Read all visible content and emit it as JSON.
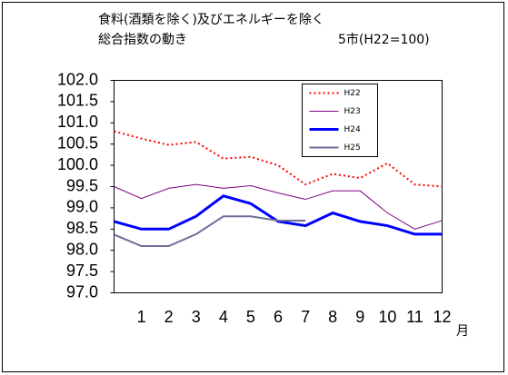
{
  "chart_data": {
    "type": "line",
    "title": [
      "食料(酒類を除く)及びエネルギーを除く",
      "総合指数の動き"
    ],
    "subtitle": "5市(H22=100)",
    "x_label": "月",
    "categories": [
      null,
      "1",
      "2",
      "3",
      "4",
      "5",
      "6",
      "7",
      "8",
      "9",
      "10",
      "11",
      "12"
    ],
    "ylim": [
      97,
      102
    ],
    "yticks": [
      {
        "value": 97,
        "label": "97.0"
      },
      {
        "value": 97.5,
        "label": "97.5"
      },
      {
        "value": 98,
        "label": "98.0"
      },
      {
        "value": 98.5,
        "label": "98.5"
      },
      {
        "value": 99,
        "label": "99.0"
      },
      {
        "value": 99.5,
        "label": "99.5"
      },
      {
        "value": 100,
        "label": "100.0"
      },
      {
        "value": 100.5,
        "label": "100.5"
      },
      {
        "value": 101,
        "label": "101.0"
      },
      {
        "value": 101.5,
        "label": "101.5"
      },
      {
        "value": 102,
        "label": "102.0"
      }
    ],
    "legend": "top-right",
    "series": [
      {
        "name": "H22",
        "color": "#ff0000",
        "style": "dotted",
        "values": [
          100.8,
          100.63,
          100.48,
          100.55,
          100.16,
          100.2,
          100.0,
          99.55,
          99.8,
          99.7,
          100.05,
          99.55,
          99.5
        ]
      },
      {
        "name": "H23",
        "color": "#800080",
        "style": "solid",
        "values": [
          99.5,
          99.22,
          99.46,
          99.55,
          99.46,
          99.52,
          99.35,
          99.2,
          99.4,
          99.4,
          98.88,
          98.5,
          98.7
        ]
      },
      {
        "name": "H24",
        "color": "#0000ff",
        "style": "thick",
        "values": [
          98.68,
          98.5,
          98.5,
          98.8,
          99.28,
          99.1,
          98.68,
          98.58,
          98.88,
          98.68,
          98.58,
          98.38,
          98.38
        ]
      },
      {
        "name": "H25",
        "color": "#6e6e9e",
        "style": "medium",
        "values": [
          98.37,
          98.1,
          98.1,
          98.38,
          98.8,
          98.8,
          98.7,
          98.7,
          null,
          null,
          null,
          null,
          null
        ]
      }
    ]
  }
}
